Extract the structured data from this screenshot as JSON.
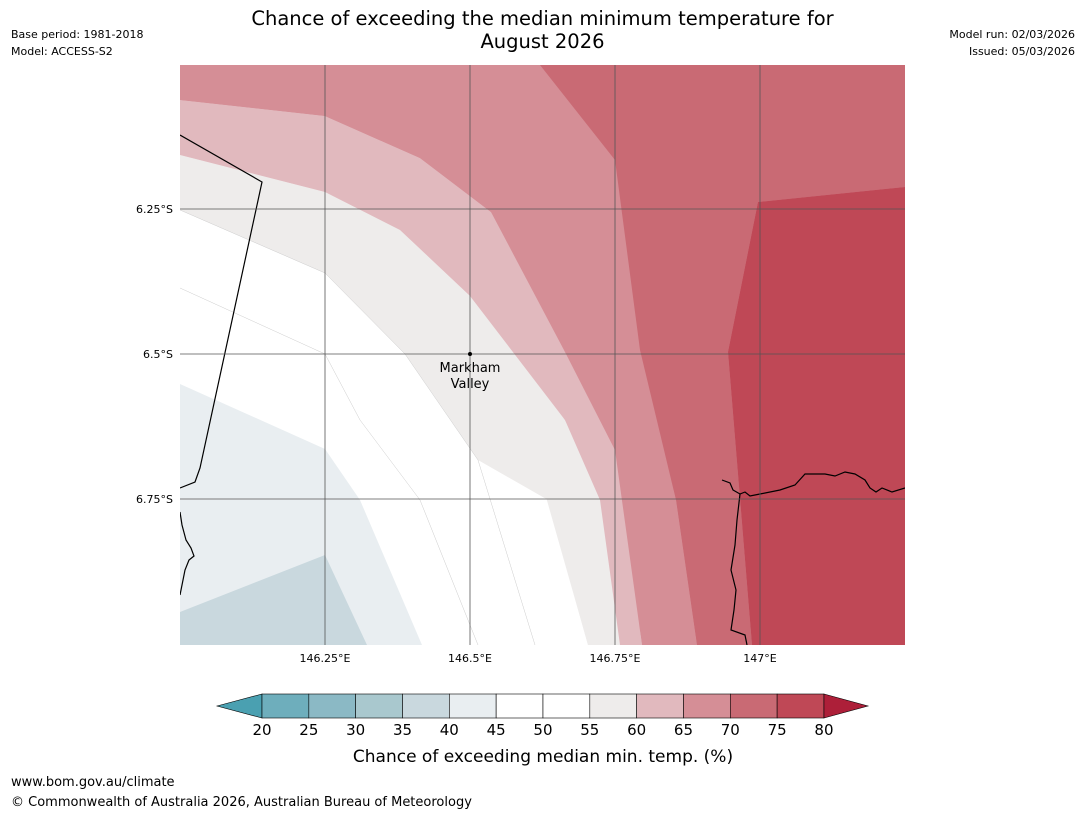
{
  "header": {
    "base_period": "Base period: 1981-2018",
    "model": "Model: ACCESS-S2",
    "model_run": "Model run: 02/03/2026",
    "issued": "Issued: 05/03/2026",
    "title_line1": "Chance of exceeding the median minimum temperature for",
    "title_line2": "August 2026"
  },
  "map": {
    "location_label_line1": "Markham",
    "location_label_line2": "Valley",
    "lat_labels": [
      "6.25°S",
      "6.5°S",
      "6.75°S"
    ],
    "lon_labels": [
      "146.25°E",
      "146.5°E",
      "146.75°E",
      "147°E"
    ]
  },
  "colorbar": {
    "title": "Chance of exceeding median min. temp. (%)",
    "ticks": [
      "20",
      "25",
      "30",
      "35",
      "40",
      "45",
      "50",
      "55",
      "60",
      "65",
      "70",
      "75",
      "80"
    ],
    "colors": [
      "#4aa0b1",
      "#6eaebc",
      "#8bb9c5",
      "#a9c8ce",
      "#c9d8de",
      "#e9eef1",
      "#ffffff",
      "#ffffff",
      "#eeeceb",
      "#e1b9be",
      "#d58e96",
      "#c96a74",
      "#bf4856",
      "#ad1f39"
    ]
  },
  "footer": {
    "url": "www.bom.gov.au/climate",
    "copyright": "© Commonwealth of Australia 2026, Australian Bureau of Meteorology"
  }
}
